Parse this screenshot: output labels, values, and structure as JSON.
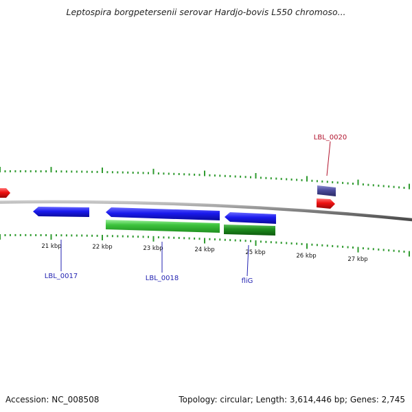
{
  "title": "Leptospira borgpetersenii serovar Hardjo-bovis L550 chromoso...",
  "footer": {
    "accession": "Accession: NC_008508",
    "summary": "Topology: circular; Length: 3,614,446 bp; Genes: 2,745"
  },
  "scale": {
    "labels": [
      "21 kbp",
      "22 kbp",
      "23 kbp",
      "24 kbp",
      "25 kbp",
      "26 kbp",
      "27 kbp"
    ]
  },
  "gene_labels": [
    {
      "id": "LBL_0017",
      "text": "LBL_0017"
    },
    {
      "id": "LBL_0018",
      "text": "LBL_0018"
    },
    {
      "id": "fliG",
      "text": "fliG"
    },
    {
      "id": "LBL_0020",
      "text": "LBL_0020"
    }
  ],
  "colors": {
    "backbone": "#888888",
    "forward_gene": "#1a1aee",
    "cds": "#3dc43d",
    "cds_dark": "#1f8f1f",
    "rna": "#ee1111",
    "rna_feature": "#4a4a9a",
    "ticks": "#2e9a2e"
  }
}
